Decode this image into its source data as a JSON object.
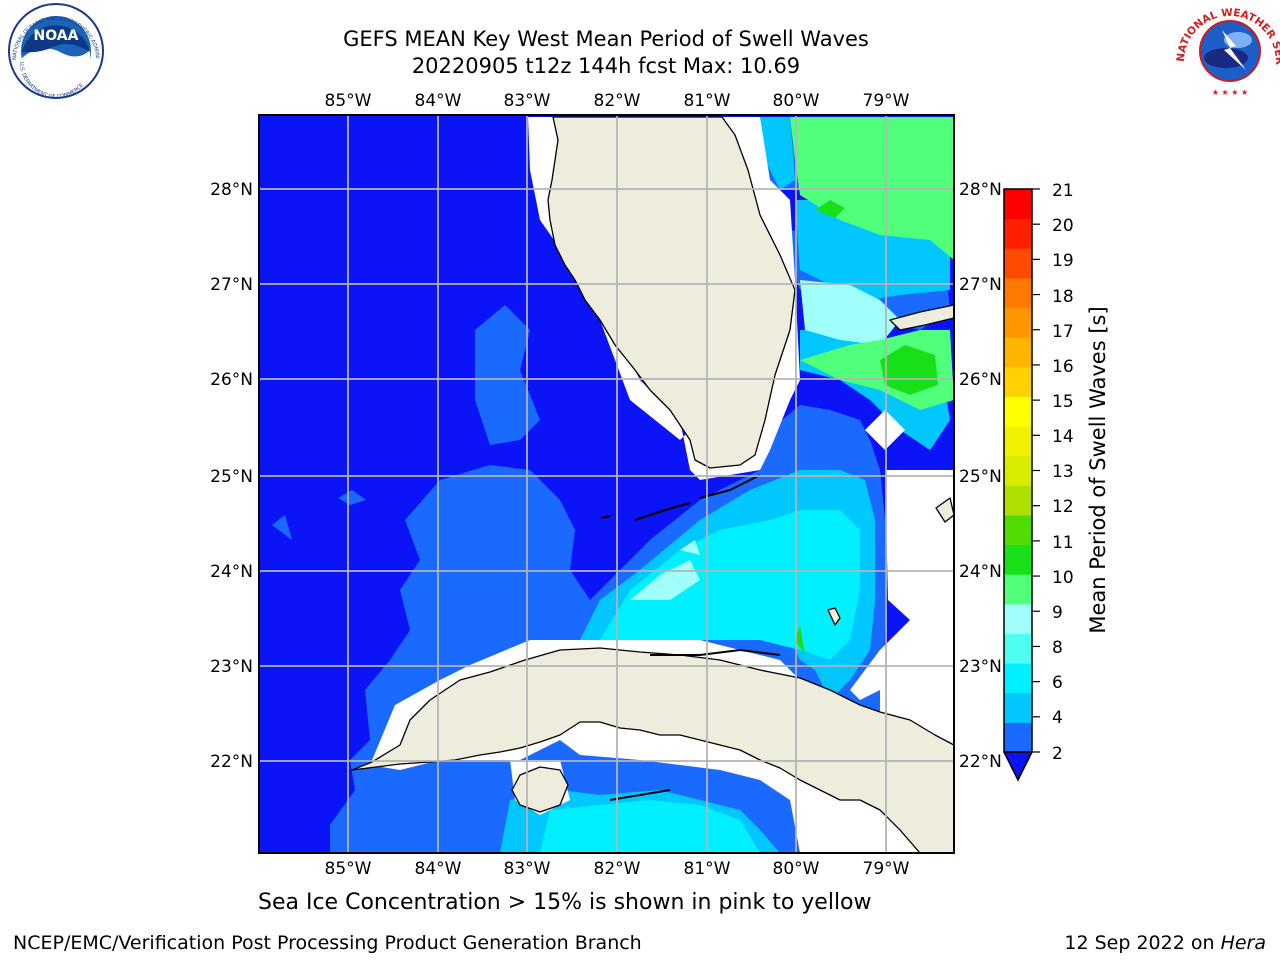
{
  "header": {
    "title_line1": "GEFS MEAN Key West Mean Period of Swell Waves",
    "title_line2": "20220905 t12z 144h fcst   Max: 10.69"
  },
  "map": {
    "lon_labels": [
      "85°W",
      "84°W",
      "83°W",
      "82°W",
      "81°W",
      "80°W",
      "79°W"
    ],
    "lat_labels": [
      "28°N",
      "27°N",
      "26°N",
      "25°N",
      "24°N",
      "23°N",
      "22°N"
    ],
    "extent": {
      "lon_min": -86.0,
      "lon_max": -78.3,
      "lat_min": 21.0,
      "lat_max": 28.8
    },
    "grid": true,
    "land_color": "#eeecdc",
    "ocean_base_color": "#0a14f6"
  },
  "colorbar": {
    "label": "Mean Period of Swell Waves [s]",
    "ticks": [
      "21",
      "20",
      "19",
      "18",
      "17",
      "16",
      "15",
      "14",
      "13",
      "12",
      "11",
      "10",
      "9",
      "8",
      "6",
      "4",
      "2"
    ],
    "level_colors": [
      "#1a6aff",
      "#00c8ff",
      "#00f0ff",
      "#4dfff0",
      "#a0fff8",
      "#50ff7a",
      "#18e018",
      "#50dc00",
      "#b0e000",
      "#d8ec00",
      "#f0f000",
      "#ffff00",
      "#ffd200",
      "#ffb400",
      "#ff9600",
      "#ff7800",
      "#ff4b00",
      "#ff2000",
      "#ff0000"
    ],
    "under_color": "#0a14f6"
  },
  "footer": {
    "caption": "Sea Ice Concentration > 15% is shown in pink to yellow",
    "credit": "NCEP/EMC/Verification Post Processing Product Generation Branch",
    "date": "12 Sep 2022 on ",
    "host": "Hera"
  },
  "logos": {
    "left_text": "NOAA",
    "left_ring_top": "NATIONAL OCEANIC AND ATMOSPHERIC ADMINISTRATION",
    "left_ring_bottom": "U.S. DEPARTMENT OF COMMERCE",
    "right_ring": "NATIONAL WEATHER SERVICE"
  }
}
